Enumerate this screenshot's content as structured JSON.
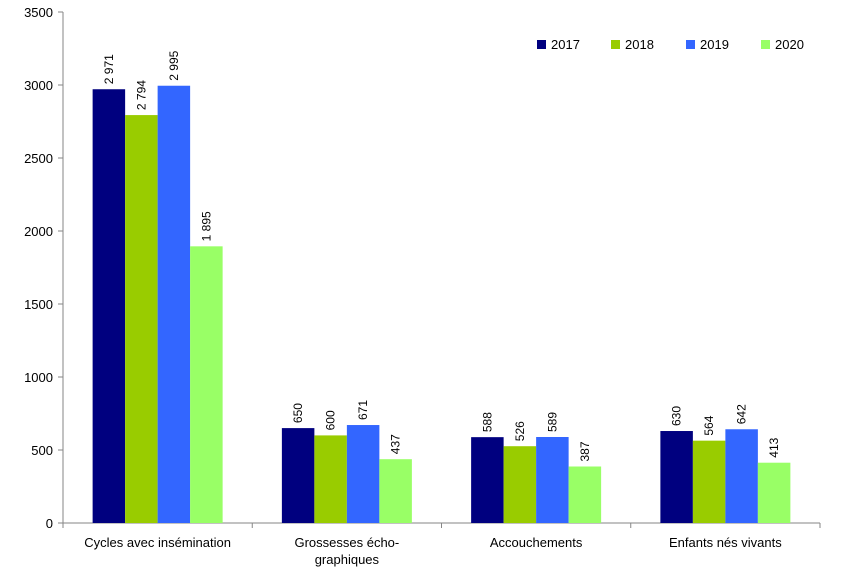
{
  "chart_data": {
    "type": "bar",
    "categories": [
      [
        "Cycles avec insémination"
      ],
      [
        "Grossesses écho-",
        "graphiques"
      ],
      [
        "Accouchements"
      ],
      [
        "Enfants nés vivants"
      ]
    ],
    "series": [
      {
        "name": "2017",
        "color": "#00007f",
        "values": [
          2971,
          650,
          588,
          630
        ],
        "labels": [
          "2 971",
          "650",
          "588",
          "630"
        ]
      },
      {
        "name": "2018",
        "color": "#99cc00",
        "values": [
          2794,
          600,
          526,
          564
        ],
        "labels": [
          "2 794",
          "600",
          "526",
          "564"
        ]
      },
      {
        "name": "2019",
        "color": "#3366ff",
        "values": [
          2995,
          671,
          589,
          642
        ],
        "labels": [
          "2 995",
          "671",
          "589",
          "642"
        ]
      },
      {
        "name": "2020",
        "color": "#99ff66",
        "values": [
          1895,
          437,
          387,
          413
        ],
        "labels": [
          "1 895",
          "437",
          "387",
          "413"
        ]
      }
    ],
    "ylim": [
      0,
      3500
    ],
    "yticks": [
      0,
      500,
      1000,
      1500,
      2000,
      2500,
      3000,
      3500
    ],
    "legend_position": "top-right",
    "grid": false
  }
}
